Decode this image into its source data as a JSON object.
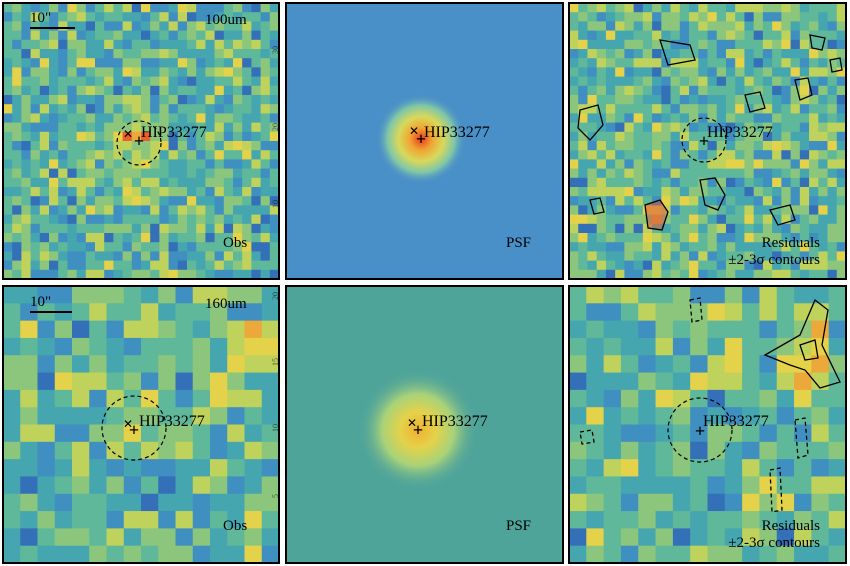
{
  "figure": {
    "source_name": "HIP33277",
    "scale_bar_label": "10\"",
    "rows": [
      {
        "band": "100um"
      },
      {
        "band": "160um"
      }
    ],
    "column_labels": {
      "obs": "Obs",
      "psf": "PSF",
      "residual_line1": "Residuals",
      "residual_line2": "±2-3σ contours"
    },
    "psf_axis_ticks_row1": [
      "30",
      "20",
      "10"
    ],
    "psf_axis_ticks_row2": [
      "20",
      "15",
      "10",
      "5"
    ]
  },
  "colors": {
    "map_low": "#3b1f8f",
    "map_mid": "#3fa5b8",
    "map_high": "#e8d24a",
    "map_peak": "#e83a28",
    "psf_bg_row1": "#4a90c8",
    "psf_bg_row2": "#4fa49a"
  }
}
